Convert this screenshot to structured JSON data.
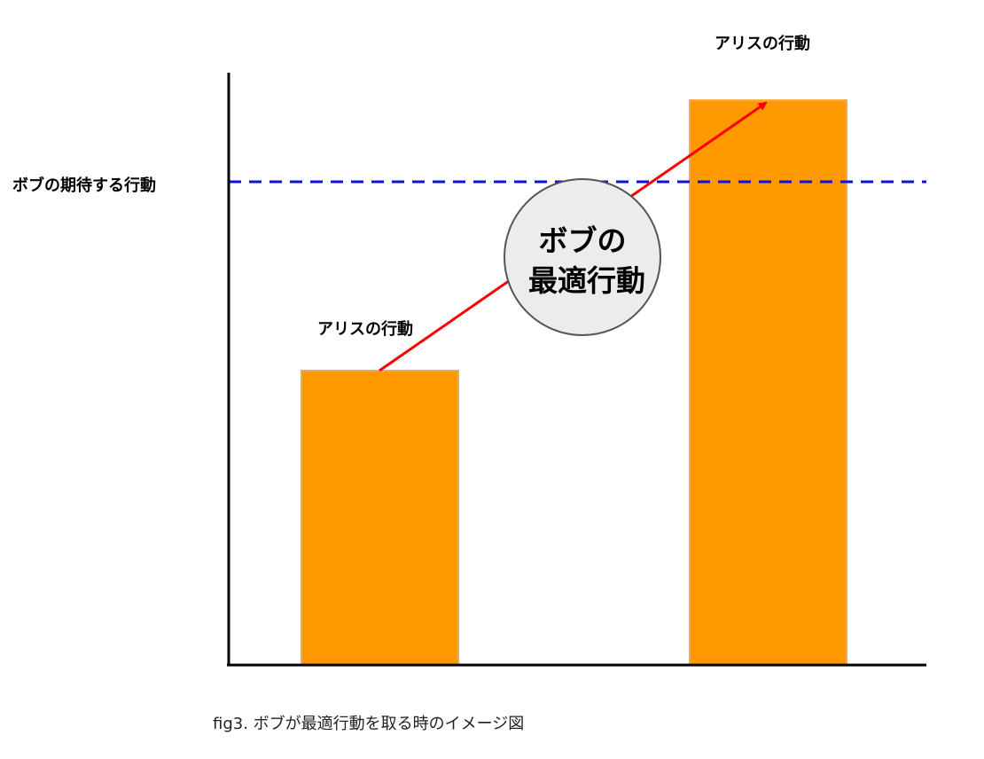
{
  "labels": {
    "expected_action": "ボブの期待する行動",
    "alice_action_low": "アリスの行動",
    "alice_action_high": "アリスの行動",
    "bubble_line1": "ボブの",
    "bubble_line2": "最適行動",
    "caption": "fig3. ボブが最適行動を取る時のイメージ図"
  },
  "colors": {
    "bar_fill": "#ff9900",
    "bar_stroke": "#f6a84a",
    "expected_line": "#1010dd",
    "arrow": "#ff0000",
    "bubble_fill": "#ececec",
    "bubble_stroke": "#555555",
    "axis": "#000000"
  }
}
